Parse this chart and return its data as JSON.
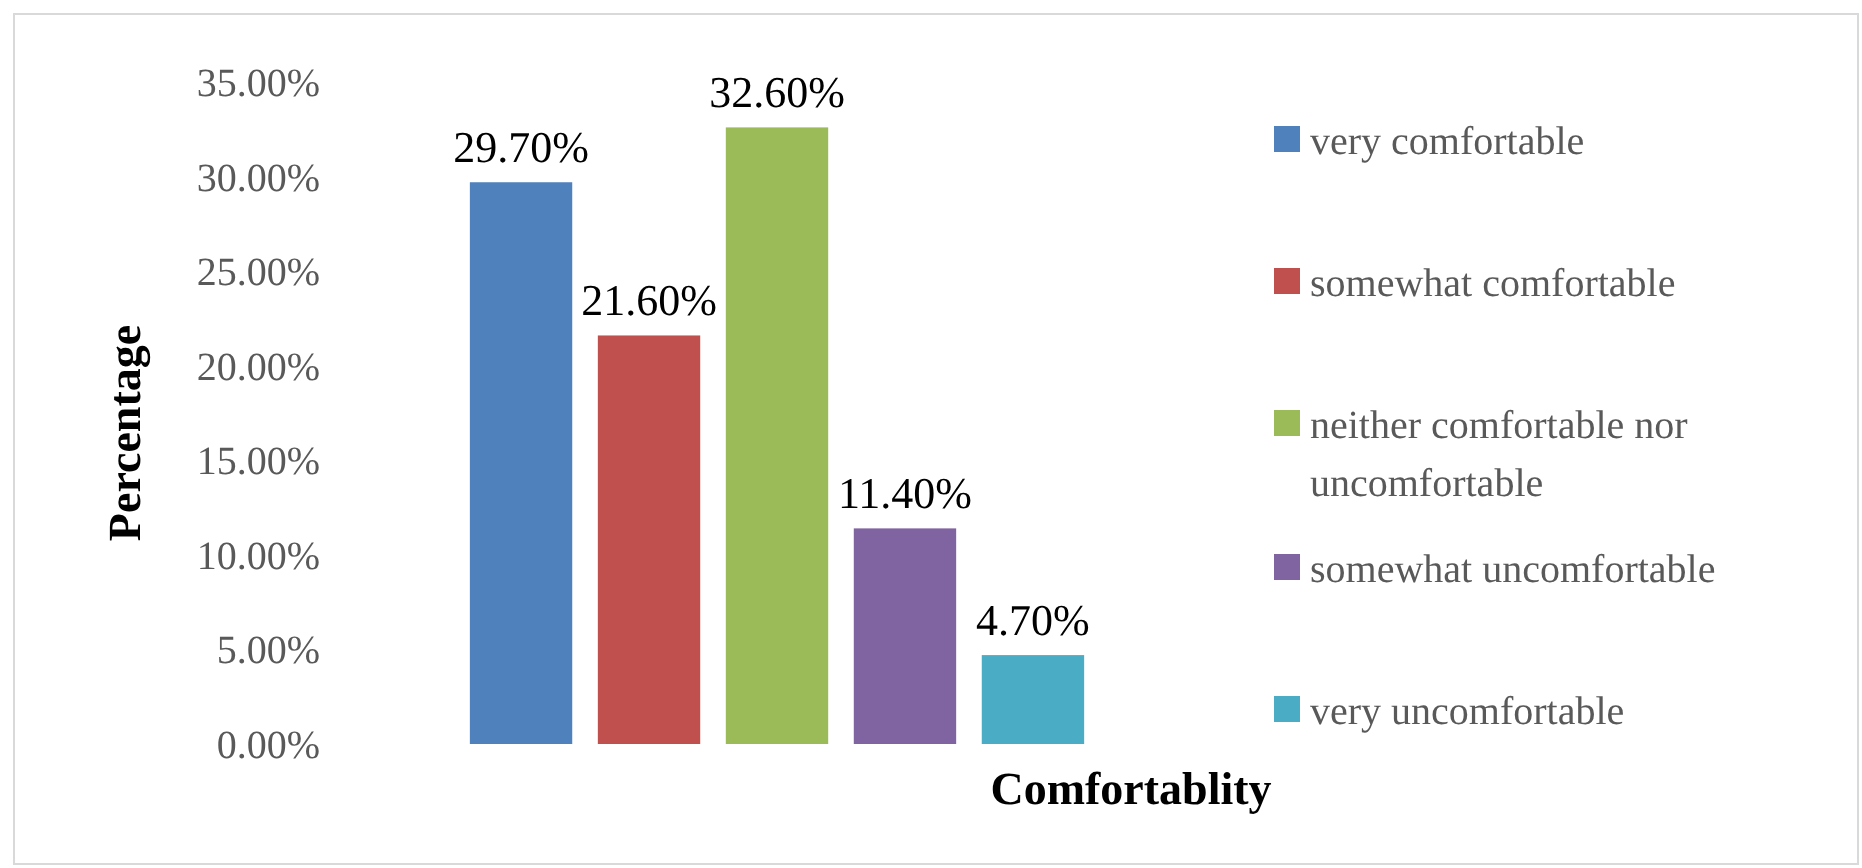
{
  "chart_data": {
    "type": "bar",
    "xlabel": "Comfortablity",
    "ylabel": "Percentage",
    "categories": [
      null
    ],
    "series": [
      {
        "name": "very comfortable",
        "color": "#4f81bd",
        "values": [
          29.7
        ],
        "value_labels": [
          "29.70%"
        ]
      },
      {
        "name": "somewhat comfortable",
        "color": "#c0504d",
        "values": [
          21.6
        ],
        "value_labels": [
          "21.60%"
        ]
      },
      {
        "name": "neither comfortable nor uncomfortable",
        "color": "#9bbb59",
        "values": [
          32.6
        ],
        "value_labels": [
          "32.60%"
        ]
      },
      {
        "name": "somewhat uncomfortable",
        "color": "#8064a2",
        "values": [
          11.4
        ],
        "value_labels": [
          "11.40%"
        ]
      },
      {
        "name": "very uncomfortable",
        "color": "#4bacc6",
        "values": [
          4.7
        ],
        "value_labels": [
          "4.70%"
        ]
      }
    ],
    "ylim": [
      0,
      35
    ],
    "yticks": [
      {
        "value": 0,
        "label": "0.00%"
      },
      {
        "value": 5,
        "label": "5.00%"
      },
      {
        "value": 10,
        "label": "10.00%"
      },
      {
        "value": 15,
        "label": "15.00%"
      },
      {
        "value": 20,
        "label": "20.00%"
      },
      {
        "value": 25,
        "label": "25.00%"
      },
      {
        "value": 30,
        "label": "30.00%"
      },
      {
        "value": 35,
        "label": "35.00%"
      }
    ],
    "grid": false,
    "legend": "right"
  }
}
